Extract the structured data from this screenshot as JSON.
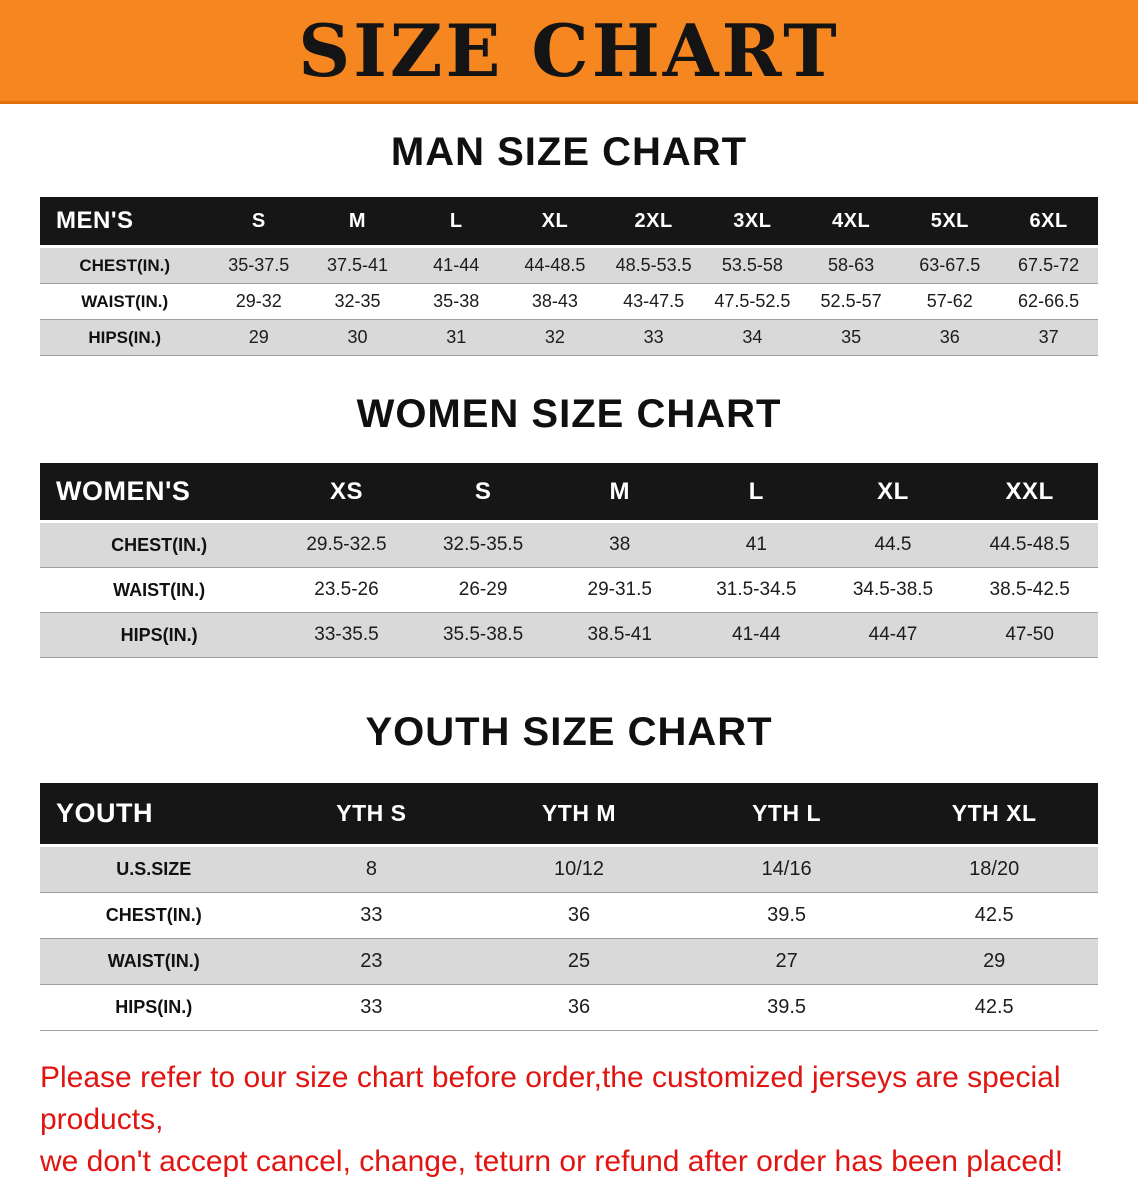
{
  "banner": {
    "title": "SIZE CHART",
    "bg_color": "#f6861f",
    "text_color": "#141414"
  },
  "sections": [
    {
      "heading": "MAN SIZE CHART",
      "table": {
        "header_label": "MEN'S",
        "columns": [
          "S",
          "M",
          "L",
          "XL",
          "2XL",
          "3XL",
          "4XL",
          "5XL",
          "6XL"
        ],
        "rows": [
          {
            "label": "CHEST(IN.)",
            "values": [
              "35-37.5",
              "37.5-41",
              "41-44",
              "44-48.5",
              "48.5-53.5",
              "53.5-58",
              "58-63",
              "63-67.5",
              "67.5-72"
            ]
          },
          {
            "label": "WAIST(IN.)",
            "values": [
              "29-32",
              "32-35",
              "35-38",
              "38-43",
              "43-47.5",
              "47.5-52.5",
              "52.5-57",
              "57-62",
              "62-66.5"
            ]
          },
          {
            "label": "HIPS(IN.)",
            "values": [
              "29",
              "30",
              "31",
              "32",
              "33",
              "34",
              "35",
              "36",
              "37"
            ]
          }
        ]
      }
    },
    {
      "heading": "WOMEN SIZE CHART",
      "table": {
        "header_label": "WOMEN'S",
        "columns": [
          "XS",
          "S",
          "M",
          "L",
          "XL",
          "XXL"
        ],
        "rows": [
          {
            "label": "CHEST(IN.)",
            "values": [
              "29.5-32.5",
              "32.5-35.5",
              "38",
              "41",
              "44.5",
              "44.5-48.5"
            ]
          },
          {
            "label": "WAIST(IN.)",
            "values": [
              "23.5-26",
              "26-29",
              "29-31.5",
              "31.5-34.5",
              "34.5-38.5",
              "38.5-42.5"
            ]
          },
          {
            "label": "HIPS(IN.)",
            "values": [
              "33-35.5",
              "35.5-38.5",
              "38.5-41",
              "41-44",
              "44-47",
              "47-50"
            ]
          }
        ]
      }
    },
    {
      "heading": "YOUTH SIZE CHART",
      "table": {
        "header_label": "YOUTH",
        "columns": [
          "YTH S",
          "YTH M",
          "YTH L",
          "YTH XL"
        ],
        "rows": [
          {
            "label": "U.S.SIZE",
            "values": [
              "8",
              "10/12",
              "14/16",
              "18/20"
            ]
          },
          {
            "label": "CHEST(IN.)",
            "values": [
              "33",
              "36",
              "39.5",
              "42.5"
            ]
          },
          {
            "label": "WAIST(IN.)",
            "values": [
              "23",
              "25",
              "27",
              "29"
            ]
          },
          {
            "label": "HIPS(IN.)",
            "values": [
              "33",
              "36",
              "39.5",
              "42.5"
            ]
          }
        ]
      }
    }
  ],
  "footer_note": {
    "lines": [
      "Please refer to our size chart before order,the customized jerseys are special products,",
      "we don't accept cancel, change, teturn or refund after order has been placed!"
    ],
    "color": "#e01410"
  }
}
